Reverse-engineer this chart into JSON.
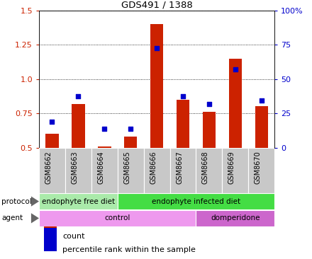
{
  "title": "GDS491 / 1388",
  "samples": [
    "GSM8662",
    "GSM8663",
    "GSM8664",
    "GSM8665",
    "GSM8666",
    "GSM8667",
    "GSM8668",
    "GSM8669",
    "GSM8670"
  ],
  "bar_values": [
    0.6,
    0.82,
    0.51,
    0.58,
    1.4,
    0.85,
    0.76,
    1.15,
    0.8
  ],
  "dot_values": [
    0.69,
    0.875,
    0.635,
    0.635,
    1.225,
    0.875,
    0.82,
    1.07,
    0.845
  ],
  "bar_color": "#cc2200",
  "dot_color": "#0000cc",
  "ylim_left": [
    0.5,
    1.5
  ],
  "ylim_right": [
    0,
    100
  ],
  "yticks_left": [
    0.5,
    0.75,
    1.0,
    1.25,
    1.5
  ],
  "yticks_right": [
    0,
    25,
    50,
    75,
    100
  ],
  "ytick_labels_right": [
    "0",
    "25",
    "50",
    "75",
    "100%"
  ],
  "protocol_groups": [
    {
      "label": "endophyte free diet",
      "start": 0,
      "end": 3,
      "color": "#aaeaaa"
    },
    {
      "label": "endophyte infected diet",
      "start": 3,
      "end": 9,
      "color": "#44dd44"
    }
  ],
  "agent_groups": [
    {
      "label": "control",
      "start": 0,
      "end": 6,
      "color": "#ee99ee"
    },
    {
      "label": "domperidone",
      "start": 6,
      "end": 9,
      "color": "#cc66cc"
    }
  ],
  "legend_count_label": "count",
  "legend_pct_label": "percentile rank within the sample",
  "bg_color": "#ffffff",
  "tick_label_bg": "#c8c8c8",
  "bar_width": 0.5
}
